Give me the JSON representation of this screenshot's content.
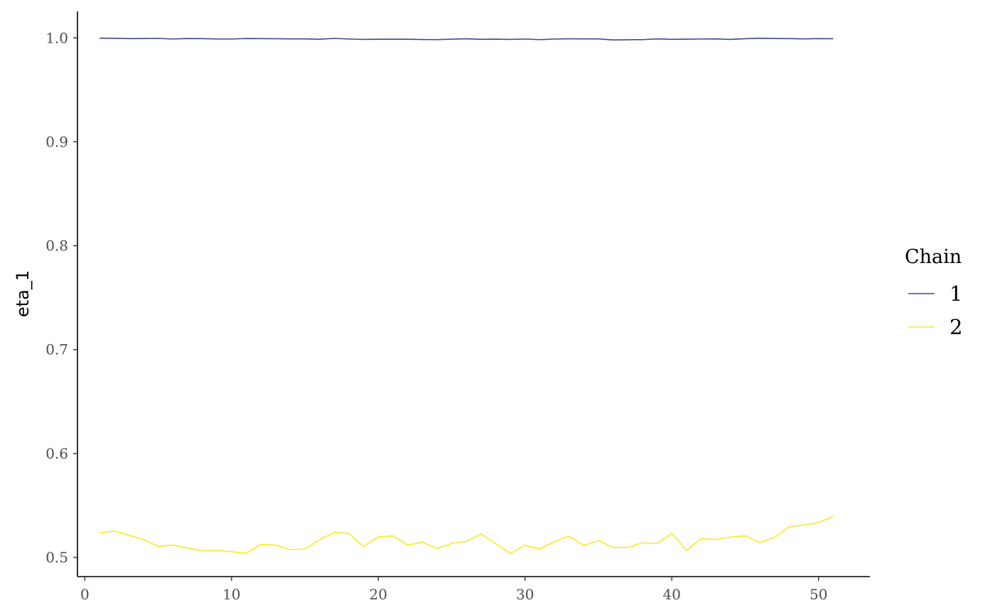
{
  "chart_data": {
    "type": "line",
    "title": "",
    "xlabel": "",
    "ylabel": "eta_1",
    "xlim": [
      -0.5,
      53.5
    ],
    "ylim": [
      0.4815,
      1.0255
    ],
    "xticks": [
      0,
      10,
      20,
      30,
      40,
      50
    ],
    "yticks": [
      0.5,
      0.6,
      0.7,
      0.8,
      0.9,
      1.0
    ],
    "ytick_labels": [
      "0.5",
      "0.6",
      "0.7",
      "0.8",
      "0.9",
      "1.0"
    ],
    "grid": false,
    "legend": {
      "title": "Chain",
      "position": "right"
    },
    "x": [
      1,
      2,
      3,
      4,
      5,
      6,
      7,
      8,
      9,
      10,
      11,
      12,
      13,
      14,
      15,
      16,
      17,
      18,
      19,
      20,
      21,
      22,
      23,
      24,
      25,
      26,
      27,
      28,
      29,
      30,
      31,
      32,
      33,
      34,
      35,
      36,
      37,
      38,
      39,
      40,
      41,
      42,
      43,
      44,
      45,
      46,
      47,
      48,
      49,
      50,
      51
    ],
    "series": [
      {
        "name": "1",
        "color": "#3b4994",
        "values": [
          0.9997,
          0.9996,
          0.9993,
          0.9994,
          0.9995,
          0.9989,
          0.9994,
          0.9993,
          0.9989,
          0.9989,
          0.9994,
          0.9993,
          0.9992,
          0.999,
          0.999,
          0.9987,
          0.9995,
          0.9989,
          0.9985,
          0.9987,
          0.9987,
          0.9987,
          0.9984,
          0.9983,
          0.9988,
          0.9991,
          0.9986,
          0.9988,
          0.9985,
          0.9989,
          0.9983,
          0.9989,
          0.9991,
          0.999,
          0.999,
          0.998,
          0.9982,
          0.9983,
          0.999,
          0.9986,
          0.9988,
          0.9989,
          0.999,
          0.9985,
          0.9992,
          0.9996,
          0.9994,
          0.9993,
          0.999,
          0.9993,
          0.9992
        ]
      },
      {
        "name": "2",
        "color": "#fde725",
        "values": [
          0.5234,
          0.5254,
          0.5214,
          0.5172,
          0.5106,
          0.5118,
          0.509,
          0.5063,
          0.5068,
          0.5055,
          0.504,
          0.5123,
          0.5118,
          0.5075,
          0.508,
          0.517,
          0.524,
          0.5231,
          0.5103,
          0.5198,
          0.5207,
          0.5118,
          0.5146,
          0.5085,
          0.5135,
          0.5155,
          0.5226,
          0.5132,
          0.5038,
          0.5118,
          0.508,
          0.5152,
          0.5204,
          0.5114,
          0.5162,
          0.5097,
          0.5095,
          0.514,
          0.5133,
          0.523,
          0.5068,
          0.518,
          0.5173,
          0.5195,
          0.5207,
          0.5143,
          0.5192,
          0.5295,
          0.5312,
          0.5333,
          0.5397
        ]
      }
    ]
  }
}
